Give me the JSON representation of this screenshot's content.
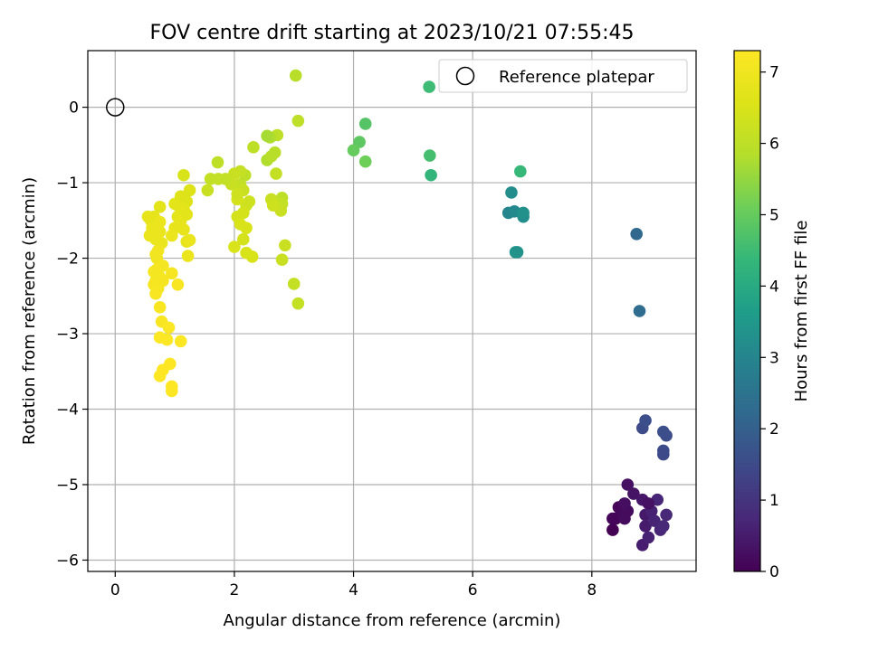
{
  "chart_data": {
    "type": "scatter",
    "title": "FOV centre drift starting at 2023/10/21 07:55:45",
    "xlabel": "Angular distance from reference (arcmin)",
    "ylabel": "Rotation from reference (arcmin)",
    "xlim": [
      -0.46,
      9.75
    ],
    "ylim": [
      -6.15,
      0.75
    ],
    "xticks": [
      0,
      2,
      4,
      6,
      8
    ],
    "yticks": [
      0,
      -1,
      -2,
      -3,
      -4,
      -5,
      -6
    ],
    "grid": true,
    "legend": {
      "position": "top-right",
      "entries": [
        "Reference platepar"
      ]
    },
    "reference_point": {
      "x": 0,
      "y": 0,
      "label": "Reference platepar"
    },
    "colorbar": {
      "label": "Hours from first FF file",
      "range": [
        0,
        7.3
      ],
      "ticks": [
        0,
        1,
        2,
        3,
        4,
        5,
        6,
        7
      ],
      "colormap": "viridis"
    },
    "points": [
      {
        "x": 8.35,
        "y": -5.6,
        "c": 0.0
      },
      {
        "x": 8.4,
        "y": -5.45,
        "c": 0.05
      },
      {
        "x": 8.45,
        "y": -5.3,
        "c": 0.1
      },
      {
        "x": 8.5,
        "y": -5.4,
        "c": 0.15
      },
      {
        "x": 8.6,
        "y": -5.35,
        "c": 0.2
      },
      {
        "x": 8.55,
        "y": -5.25,
        "c": 0.25
      },
      {
        "x": 8.6,
        "y": -5.0,
        "c": 0.3
      },
      {
        "x": 8.7,
        "y": -5.12,
        "c": 0.35
      },
      {
        "x": 8.85,
        "y": -5.2,
        "c": 0.4
      },
      {
        "x": 8.9,
        "y": -5.4,
        "c": 0.45
      },
      {
        "x": 8.9,
        "y": -5.55,
        "c": 0.5
      },
      {
        "x": 8.85,
        "y": -5.8,
        "c": 0.55
      },
      {
        "x": 8.95,
        "y": -5.7,
        "c": 0.6
      },
      {
        "x": 9.0,
        "y": -5.35,
        "c": 0.6
      },
      {
        "x": 9.05,
        "y": -5.48,
        "c": 0.65
      },
      {
        "x": 9.1,
        "y": -5.2,
        "c": 0.7
      },
      {
        "x": 9.15,
        "y": -5.6,
        "c": 0.7
      },
      {
        "x": 9.2,
        "y": -5.55,
        "c": 0.75
      },
      {
        "x": 9.25,
        "y": -5.4,
        "c": 0.75
      },
      {
        "x": 8.55,
        "y": -5.45,
        "c": 0.2
      },
      {
        "x": 8.95,
        "y": -5.25,
        "c": 0.3
      },
      {
        "x": 8.35,
        "y": -5.45,
        "c": 0.1
      },
      {
        "x": 8.85,
        "y": -4.25,
        "c": 1.5
      },
      {
        "x": 8.9,
        "y": -4.15,
        "c": 1.6
      },
      {
        "x": 9.25,
        "y": -4.35,
        "c": 1.55
      },
      {
        "x": 9.2,
        "y": -4.3,
        "c": 1.6
      },
      {
        "x": 9.2,
        "y": -4.55,
        "c": 1.5
      },
      {
        "x": 9.2,
        "y": -4.6,
        "c": 1.45
      },
      {
        "x": 8.75,
        "y": -1.68,
        "c": 2.2
      },
      {
        "x": 8.8,
        "y": -2.7,
        "c": 2.3
      },
      {
        "x": 6.6,
        "y": -1.4,
        "c": 3.0
      },
      {
        "x": 6.7,
        "y": -1.38,
        "c": 3.1
      },
      {
        "x": 6.65,
        "y": -1.13,
        "c": 3.2
      },
      {
        "x": 6.85,
        "y": -1.45,
        "c": 3.2
      },
      {
        "x": 6.85,
        "y": -1.4,
        "c": 3.3
      },
      {
        "x": 6.72,
        "y": -1.92,
        "c": 3.4
      },
      {
        "x": 6.75,
        "y": -1.92,
        "c": 3.35
      },
      {
        "x": 6.8,
        "y": -0.85,
        "c": 4.4
      },
      {
        "x": 5.3,
        "y": -0.9,
        "c": 4.3
      },
      {
        "x": 5.28,
        "y": -0.64,
        "c": 4.6
      },
      {
        "x": 5.27,
        "y": 0.27,
        "c": 4.5
      },
      {
        "x": 4.2,
        "y": -0.22,
        "c": 4.8
      },
      {
        "x": 4.1,
        "y": -0.46,
        "c": 4.9
      },
      {
        "x": 4.0,
        "y": -0.57,
        "c": 5.0
      },
      {
        "x": 4.2,
        "y": -0.72,
        "c": 5.1
      },
      {
        "x": 3.03,
        "y": 0.42,
        "c": 5.9
      },
      {
        "x": 3.07,
        "y": -0.18,
        "c": 6.0
      },
      {
        "x": 3.0,
        "y": -2.34,
        "c": 6.1
      },
      {
        "x": 3.07,
        "y": -2.6,
        "c": 6.1
      },
      {
        "x": 2.85,
        "y": -1.83,
        "c": 6.2
      },
      {
        "x": 2.8,
        "y": -2.02,
        "c": 6.2
      },
      {
        "x": 2.8,
        "y": -1.2,
        "c": 6.0
      },
      {
        "x": 2.8,
        "y": -1.28,
        "c": 6.1
      },
      {
        "x": 2.78,
        "y": -1.37,
        "c": 6.2
      },
      {
        "x": 2.7,
        "y": -0.88,
        "c": 6.1
      },
      {
        "x": 2.72,
        "y": -0.37,
        "c": 6.0
      },
      {
        "x": 2.68,
        "y": -0.6,
        "c": 5.9
      },
      {
        "x": 2.6,
        "y": -0.4,
        "c": 5.8
      },
      {
        "x": 2.55,
        "y": -0.38,
        "c": 5.7
      },
      {
        "x": 2.55,
        "y": -0.7,
        "c": 5.8
      },
      {
        "x": 2.62,
        "y": -0.65,
        "c": 5.9
      },
      {
        "x": 2.32,
        "y": -0.53,
        "c": 6.0
      },
      {
        "x": 2.62,
        "y": -1.22,
        "c": 6.2
      },
      {
        "x": 2.65,
        "y": -1.3,
        "c": 6.3
      },
      {
        "x": 2.3,
        "y": -1.98,
        "c": 6.5
      },
      {
        "x": 2.2,
        "y": -1.93,
        "c": 6.5
      },
      {
        "x": 2.0,
        "y": -1.85,
        "c": 6.5
      },
      {
        "x": 2.1,
        "y": -1.02,
        "c": 6.1
      },
      {
        "x": 2.15,
        "y": -1.1,
        "c": 6.2
      },
      {
        "x": 2.2,
        "y": -1.3,
        "c": 6.3
      },
      {
        "x": 2.05,
        "y": -1.22,
        "c": 6.4
      },
      {
        "x": 2.05,
        "y": -1.45,
        "c": 6.4
      },
      {
        "x": 2.1,
        "y": -1.55,
        "c": 6.5
      },
      {
        "x": 2.2,
        "y": -1.6,
        "c": 6.5
      },
      {
        "x": 2.15,
        "y": -1.75,
        "c": 6.4
      },
      {
        "x": 2.18,
        "y": -0.9,
        "c": 6.0
      },
      {
        "x": 2.1,
        "y": -0.85,
        "c": 6.1
      },
      {
        "x": 2.0,
        "y": -0.88,
        "c": 6.2
      },
      {
        "x": 2.05,
        "y": -1.15,
        "c": 6.3
      },
      {
        "x": 2.15,
        "y": -1.4,
        "c": 6.4
      },
      {
        "x": 2.25,
        "y": -1.25,
        "c": 6.3
      },
      {
        "x": 1.95,
        "y": -1.02,
        "c": 6.2
      },
      {
        "x": 1.72,
        "y": -0.73,
        "c": 6.0
      },
      {
        "x": 1.73,
        "y": -0.95,
        "c": 6.1
      },
      {
        "x": 1.6,
        "y": -0.95,
        "c": 6.1
      },
      {
        "x": 1.55,
        "y": -1.1,
        "c": 6.2
      },
      {
        "x": 1.85,
        "y": -0.95,
        "c": 6.1
      },
      {
        "x": 1.15,
        "y": -0.9,
        "c": 6.5
      },
      {
        "x": 1.25,
        "y": -1.1,
        "c": 6.6
      },
      {
        "x": 1.2,
        "y": -1.25,
        "c": 6.6
      },
      {
        "x": 1.1,
        "y": -1.18,
        "c": 6.6
      },
      {
        "x": 1.05,
        "y": -1.3,
        "c": 6.7
      },
      {
        "x": 1.0,
        "y": -1.28,
        "c": 6.7
      },
      {
        "x": 1.15,
        "y": -1.35,
        "c": 6.7
      },
      {
        "x": 1.05,
        "y": -1.45,
        "c": 6.7
      },
      {
        "x": 1.1,
        "y": -1.5,
        "c": 6.8
      },
      {
        "x": 1.2,
        "y": -1.42,
        "c": 6.7
      },
      {
        "x": 1.0,
        "y": -1.6,
        "c": 6.8
      },
      {
        "x": 1.15,
        "y": -1.62,
        "c": 6.8
      },
      {
        "x": 1.2,
        "y": -1.78,
        "c": 6.8
      },
      {
        "x": 1.25,
        "y": -1.76,
        "c": 6.9
      },
      {
        "x": 1.22,
        "y": -1.97,
        "c": 6.9
      },
      {
        "x": 0.95,
        "y": -1.7,
        "c": 6.9
      },
      {
        "x": 0.75,
        "y": -1.32,
        "c": 6.7
      },
      {
        "x": 0.7,
        "y": -1.55,
        "c": 6.9
      },
      {
        "x": 0.75,
        "y": -1.65,
        "c": 6.9
      },
      {
        "x": 0.78,
        "y": -1.8,
        "c": 6.9
      },
      {
        "x": 0.72,
        "y": -1.9,
        "c": 7.0
      },
      {
        "x": 0.7,
        "y": -2.0,
        "c": 7.0
      },
      {
        "x": 0.68,
        "y": -1.75,
        "c": 6.9
      },
      {
        "x": 0.55,
        "y": -1.45,
        "c": 6.8
      },
      {
        "x": 0.6,
        "y": -1.5,
        "c": 6.8
      },
      {
        "x": 0.62,
        "y": -1.6,
        "c": 6.9
      },
      {
        "x": 0.58,
        "y": -1.7,
        "c": 6.9
      },
      {
        "x": 0.65,
        "y": -1.45,
        "c": 6.8
      },
      {
        "x": 0.75,
        "y": -1.52,
        "c": 6.9
      },
      {
        "x": 0.68,
        "y": -1.95,
        "c": 7.0
      },
      {
        "x": 0.7,
        "y": -2.15,
        "c": 7.1
      },
      {
        "x": 0.65,
        "y": -2.18,
        "c": 7.1
      },
      {
        "x": 0.75,
        "y": -2.25,
        "c": 7.1
      },
      {
        "x": 0.8,
        "y": -2.1,
        "c": 7.1
      },
      {
        "x": 0.68,
        "y": -2.3,
        "c": 7.1
      },
      {
        "x": 0.72,
        "y": -2.4,
        "c": 7.1
      },
      {
        "x": 0.65,
        "y": -2.35,
        "c": 7.15
      },
      {
        "x": 0.68,
        "y": -2.47,
        "c": 7.2
      },
      {
        "x": 0.8,
        "y": -2.3,
        "c": 7.15
      },
      {
        "x": 0.95,
        "y": -2.2,
        "c": 7.15
      },
      {
        "x": 1.05,
        "y": -2.35,
        "c": 7.2
      },
      {
        "x": 0.75,
        "y": -2.65,
        "c": 7.2
      },
      {
        "x": 0.78,
        "y": -2.84,
        "c": 7.2
      },
      {
        "x": 0.9,
        "y": -2.92,
        "c": 7.25
      },
      {
        "x": 0.75,
        "y": -3.05,
        "c": 7.25
      },
      {
        "x": 0.87,
        "y": -3.08,
        "c": 7.25
      },
      {
        "x": 1.1,
        "y": -3.1,
        "c": 7.25
      },
      {
        "x": 0.92,
        "y": -3.4,
        "c": 7.3
      },
      {
        "x": 0.8,
        "y": -3.48,
        "c": 7.3
      },
      {
        "x": 0.75,
        "y": -3.56,
        "c": 7.3
      },
      {
        "x": 0.95,
        "y": -3.7,
        "c": 7.3
      },
      {
        "x": 0.95,
        "y": -3.76,
        "c": 7.3
      }
    ]
  }
}
